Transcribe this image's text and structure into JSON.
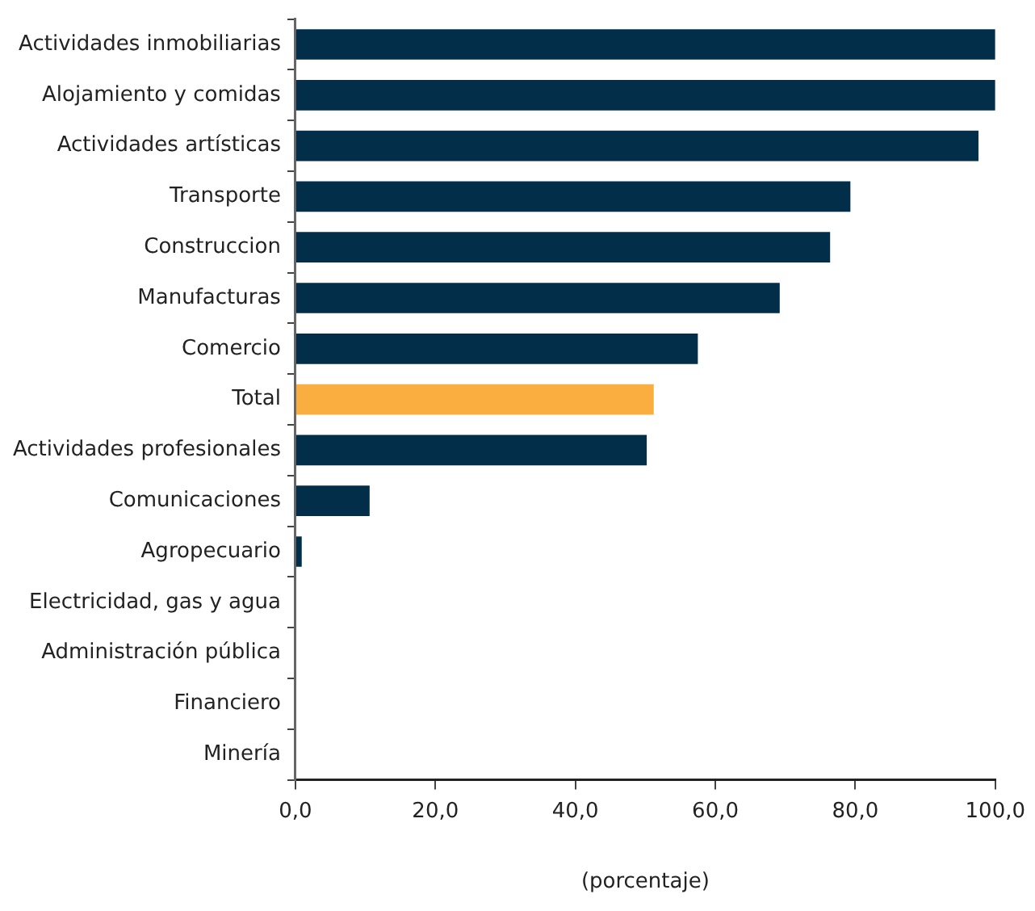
{
  "chart_data": {
    "type": "bar",
    "orientation": "horizontal",
    "xlabel": "(porcentaje)",
    "categories": [
      "Actividades inmobiliarias",
      "Alojamiento y comidas",
      "Actividades artísticas",
      "Transporte",
      "Construccion",
      "Manufacturas",
      "Comercio",
      "Total",
      "Actividades profesionales",
      "Comunicaciones",
      "Agropecuario",
      "Electricidad, gas y agua",
      "Administración pública",
      "Financiero",
      "Minería"
    ],
    "values": [
      100,
      100,
      97.6,
      79.3,
      76.4,
      69.2,
      57.5,
      51.2,
      50.2,
      10.6,
      0.9,
      0,
      0,
      0,
      0
    ],
    "colors": [
      "#022e49",
      "#022e49",
      "#022e49",
      "#022e49",
      "#022e49",
      "#022e49",
      "#022e49",
      "#fbae40",
      "#022e49",
      "#022e49",
      "#022e49",
      "#022e49",
      "#022e49",
      "#022e49",
      "#022e49"
    ],
    "xlim": [
      0,
      100
    ],
    "xticks": [
      {
        "value": 0,
        "label": "0,0"
      },
      {
        "value": 20,
        "label": "20,0"
      },
      {
        "value": 40,
        "label": "40,0"
      },
      {
        "value": 60,
        "label": "60,0"
      },
      {
        "value": 80,
        "label": "80,0"
      },
      {
        "value": 100,
        "label": "100,0"
      }
    ],
    "grid": false,
    "legend": false
  }
}
